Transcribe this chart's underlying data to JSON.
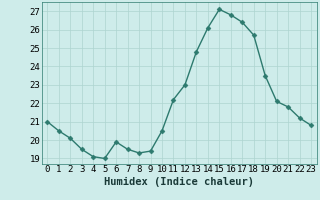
{
  "x": [
    0,
    1,
    2,
    3,
    4,
    5,
    6,
    7,
    8,
    9,
    10,
    11,
    12,
    13,
    14,
    15,
    16,
    17,
    18,
    19,
    20,
    21,
    22,
    23
  ],
  "y": [
    21.0,
    20.5,
    20.1,
    19.5,
    19.1,
    19.0,
    19.9,
    19.5,
    19.3,
    19.4,
    20.5,
    22.2,
    23.0,
    24.8,
    26.1,
    27.1,
    26.8,
    26.4,
    25.7,
    23.5,
    22.1,
    21.8,
    21.2,
    20.8
  ],
  "xlabel": "Humidex (Indice chaleur)",
  "xlim": [
    -0.5,
    23.5
  ],
  "ylim": [
    18.7,
    27.5
  ],
  "yticks": [
    19,
    20,
    21,
    22,
    23,
    24,
    25,
    26,
    27
  ],
  "xticks": [
    0,
    1,
    2,
    3,
    4,
    5,
    6,
    7,
    8,
    9,
    10,
    11,
    12,
    13,
    14,
    15,
    16,
    17,
    18,
    19,
    20,
    21,
    22,
    23
  ],
  "line_color": "#2d7a6e",
  "marker": "D",
  "marker_size": 2.5,
  "bg_color": "#ceecea",
  "grid_color": "#aed4d0",
  "label_fontsize": 7.5,
  "tick_fontsize": 6.5
}
